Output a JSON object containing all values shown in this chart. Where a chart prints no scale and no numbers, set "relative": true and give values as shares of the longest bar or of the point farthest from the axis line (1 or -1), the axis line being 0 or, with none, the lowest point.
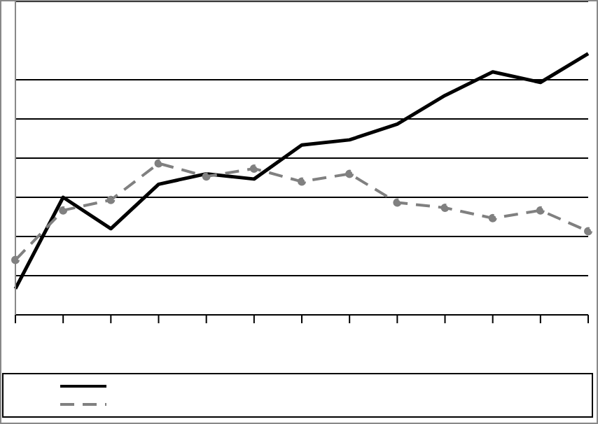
{
  "chart_data": {
    "type": "line",
    "relative": true,
    "categories": [
      null,
      null,
      null,
      null,
      null,
      null,
      null,
      null,
      null,
      null,
      null,
      null,
      null
    ],
    "series": [
      {
        "color": "#000000",
        "line_style": "solid",
        "marker": "none",
        "values": [
          0.1,
          0.45,
          0.33,
          0.5,
          0.54,
          0.52,
          0.65,
          0.67,
          0.73,
          0.84,
          0.93,
          0.89,
          1
        ]
      },
      {
        "color": "#808080",
        "line_style": "dashed",
        "marker": "circle",
        "values": [
          0.21,
          0.4,
          0.44,
          0.58,
          0.53,
          0.56,
          0.51,
          0.54,
          0.43,
          0.41,
          0.37,
          0.4,
          0.32
        ]
      }
    ],
    "grid": "y"
  }
}
